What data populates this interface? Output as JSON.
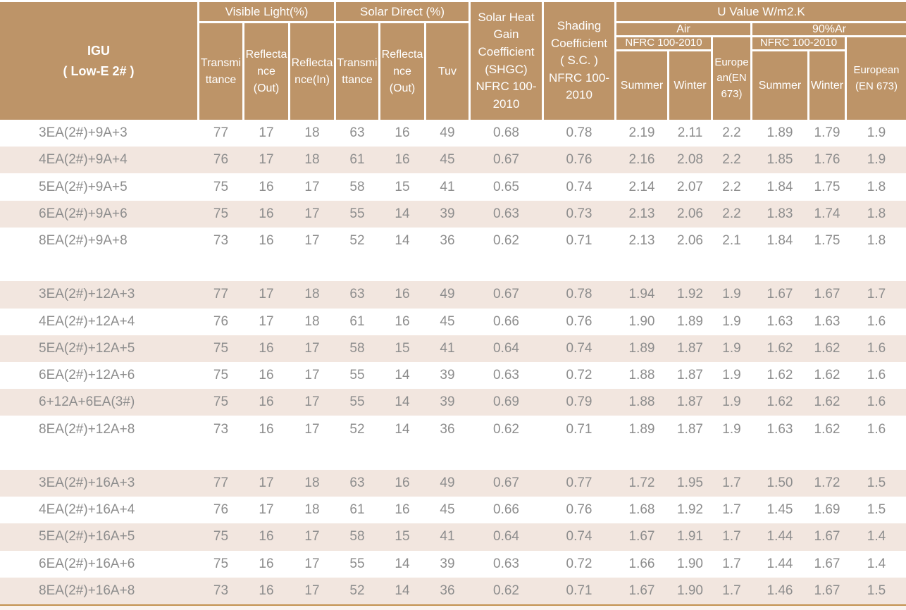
{
  "colors": {
    "header_bg": "#bd9468",
    "header_text": "#ffffff",
    "stripe": "#f2e6df",
    "text": "#8d8d8d",
    "bottom_line": "#c2914e",
    "bottom_pad": "#faf3ee"
  },
  "header": {
    "igu": "IGU\n( Low-E 2# )",
    "visible_light": {
      "label": "Visible Light(%)",
      "cols": [
        "Transmi\nttance",
        "Reflecta\nnce\n(Out)",
        "Reflecta\nnce(In)"
      ]
    },
    "solar_direct": {
      "label": "Solar Direct (%)",
      "cols": [
        "Transmi\nttance",
        "Reflecta\nnce\n(Out)",
        "Tuv"
      ]
    },
    "shgc": "Solar Heat\nGain\nCoefficient\n(SHGC)\nNFRC 100-\n2010",
    "shading": "Shading\nCoefficient\n( S.C. )\nNFRC 100-\n2010",
    "u_value": {
      "label": "U Value W/m2.K",
      "air": {
        "label": "Air",
        "nfrc": "NFRC 100-2010",
        "summer": "Summer",
        "winter": "Winter",
        "european": "Europe\nan(EN\n673)"
      },
      "argon": {
        "label": "90%Ar",
        "nfrc": "NFRC 100-2010",
        "summer": "Summer",
        "winter": "Winter",
        "european": "European\n(EN 673)"
      }
    }
  },
  "groups": [
    {
      "rows": [
        [
          "3EA(2#)+9A+3",
          "77",
          "17",
          "18",
          "63",
          "16",
          "49",
          "0.68",
          "0.78",
          "2.19",
          "2.11",
          "2.2",
          "1.89",
          "1.79",
          "1.9"
        ],
        [
          "4EA(2#)+9A+4",
          "76",
          "17",
          "18",
          "61",
          "16",
          "45",
          "0.67",
          "0.76",
          "2.16",
          "2.08",
          "2.2",
          "1.85",
          "1.76",
          "1.9"
        ],
        [
          "5EA(2#)+9A+5",
          "75",
          "16",
          "17",
          "58",
          "15",
          "41",
          "0.65",
          "0.74",
          "2.14",
          "2.07",
          "2.2",
          "1.84",
          "1.75",
          "1.8"
        ],
        [
          "6EA(2#)+9A+6",
          "75",
          "16",
          "17",
          "55",
          "14",
          "39",
          "0.63",
          "0.73",
          "2.13",
          "2.06",
          "2.2",
          "1.83",
          "1.74",
          "1.8"
        ],
        [
          "8EA(2#)+9A+8",
          "73",
          "16",
          "17",
          "52",
          "14",
          "36",
          "0.62",
          "0.71",
          "2.13",
          "2.06",
          "2.1",
          "1.84",
          "1.75",
          "1.8"
        ]
      ]
    },
    {
      "rows": [
        [
          "3EA(2#)+12A+3",
          "77",
          "17",
          "18",
          "63",
          "16",
          "49",
          "0.67",
          "0.78",
          "1.94",
          "1.92",
          "1.9",
          "1.67",
          "1.67",
          "1.7"
        ],
        [
          "4EA(2#)+12A+4",
          "76",
          "17",
          "18",
          "61",
          "16",
          "45",
          "0.66",
          "0.76",
          "1.90",
          "1.89",
          "1.9",
          "1.63",
          "1.63",
          "1.6"
        ],
        [
          "5EA(2#)+12A+5",
          "75",
          "16",
          "17",
          "58",
          "15",
          "41",
          "0.64",
          "0.74",
          "1.89",
          "1.87",
          "1.9",
          "1.62",
          "1.62",
          "1.6"
        ],
        [
          "6EA(2#)+12A+6",
          "75",
          "16",
          "17",
          "55",
          "14",
          "39",
          "0.63",
          "0.72",
          "1.88",
          "1.87",
          "1.9",
          "1.62",
          "1.62",
          "1.6"
        ],
        [
          "6+12A+6EA(3#)",
          "75",
          "16",
          "17",
          "55",
          "14",
          "39",
          "0.69",
          "0.79",
          "1.88",
          "1.87",
          "1.9",
          "1.62",
          "1.62",
          "1.6"
        ],
        [
          "8EA(2#)+12A+8",
          "73",
          "16",
          "17",
          "52",
          "14",
          "36",
          "0.62",
          "0.71",
          "1.89",
          "1.87",
          "1.9",
          "1.63",
          "1.62",
          "1.6"
        ]
      ]
    },
    {
      "rows": [
        [
          "3EA(2#)+16A+3",
          "77",
          "17",
          "18",
          "63",
          "16",
          "49",
          "0.67",
          "0.77",
          "1.72",
          "1.95",
          "1.7",
          "1.50",
          "1.72",
          "1.5"
        ],
        [
          "4EA(2#)+16A+4",
          "76",
          "17",
          "18",
          "61",
          "16",
          "45",
          "0.66",
          "0.76",
          "1.68",
          "1.92",
          "1.7",
          "1.45",
          "1.69",
          "1.5"
        ],
        [
          "5EA(2#)+16A+5",
          "75",
          "16",
          "17",
          "58",
          "15",
          "41",
          "0.64",
          "0.74",
          "1.67",
          "1.91",
          "1.7",
          "1.44",
          "1.67",
          "1.4"
        ],
        [
          "6EA(2#)+16A+6",
          "75",
          "16",
          "17",
          "55",
          "14",
          "39",
          "0.63",
          "0.72",
          "1.66",
          "1.90",
          "1.7",
          "1.44",
          "1.67",
          "1.4"
        ],
        [
          "8EA(2#)+16A+8",
          "73",
          "16",
          "17",
          "52",
          "14",
          "36",
          "0.62",
          "0.71",
          "1.67",
          "1.90",
          "1.7",
          "1.46",
          "1.67",
          "1.5"
        ]
      ]
    }
  ]
}
